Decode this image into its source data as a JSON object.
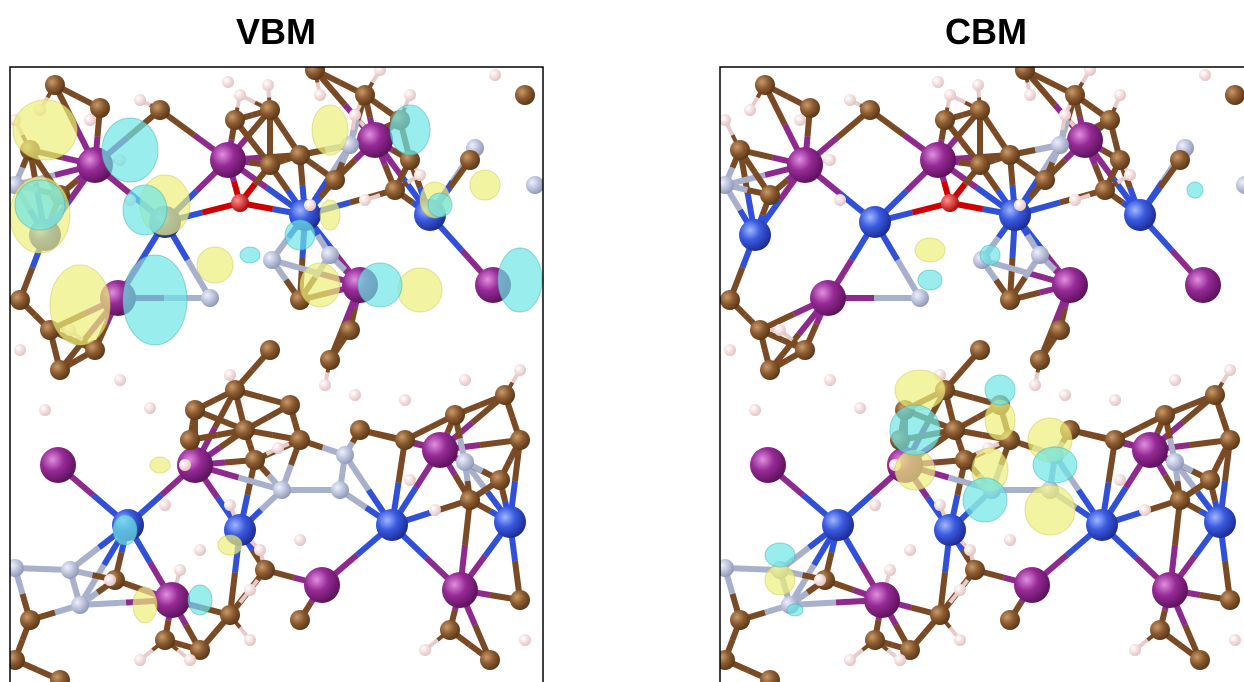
{
  "panels": [
    {
      "title": "VBM"
    },
    {
      "title": "CBM"
    }
  ]
}
